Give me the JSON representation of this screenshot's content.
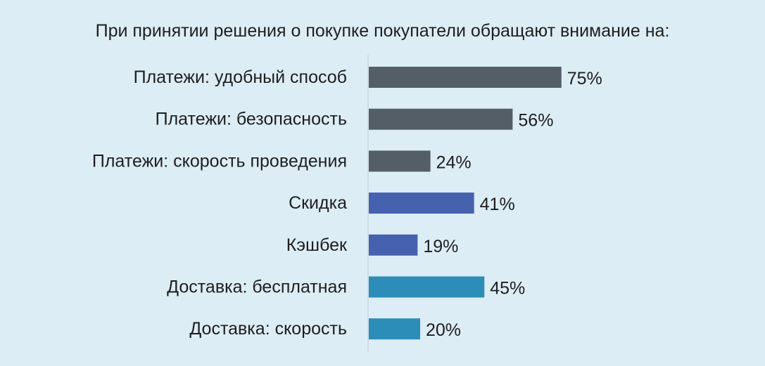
{
  "chart_data": {
    "type": "bar",
    "orientation": "horizontal",
    "title": "При принятии решения о покупке покупатели обращают внимание на:",
    "categories": [
      "Платежи: удобный способ",
      "Платежи: безопасность",
      "Платежи: скорость проведения",
      "Скидка",
      "Кэшбек",
      "Доставка: бесплатная",
      "Доставка: скорость"
    ],
    "values": [
      75,
      56,
      24,
      41,
      19,
      45,
      20
    ],
    "value_labels": [
      "75%",
      "56%",
      "24%",
      "41%",
      "19%",
      "45%",
      "20%"
    ],
    "bar_colors": [
      "#535e66",
      "#535e66",
      "#535e66",
      "#4661ae",
      "#4661ae",
      "#2b8db8",
      "#2b8db8"
    ],
    "background": "#dcedf5",
    "axis_color": "#c9d8e0",
    "xlim": [
      0,
      100
    ],
    "grid": false,
    "legend": "none"
  }
}
